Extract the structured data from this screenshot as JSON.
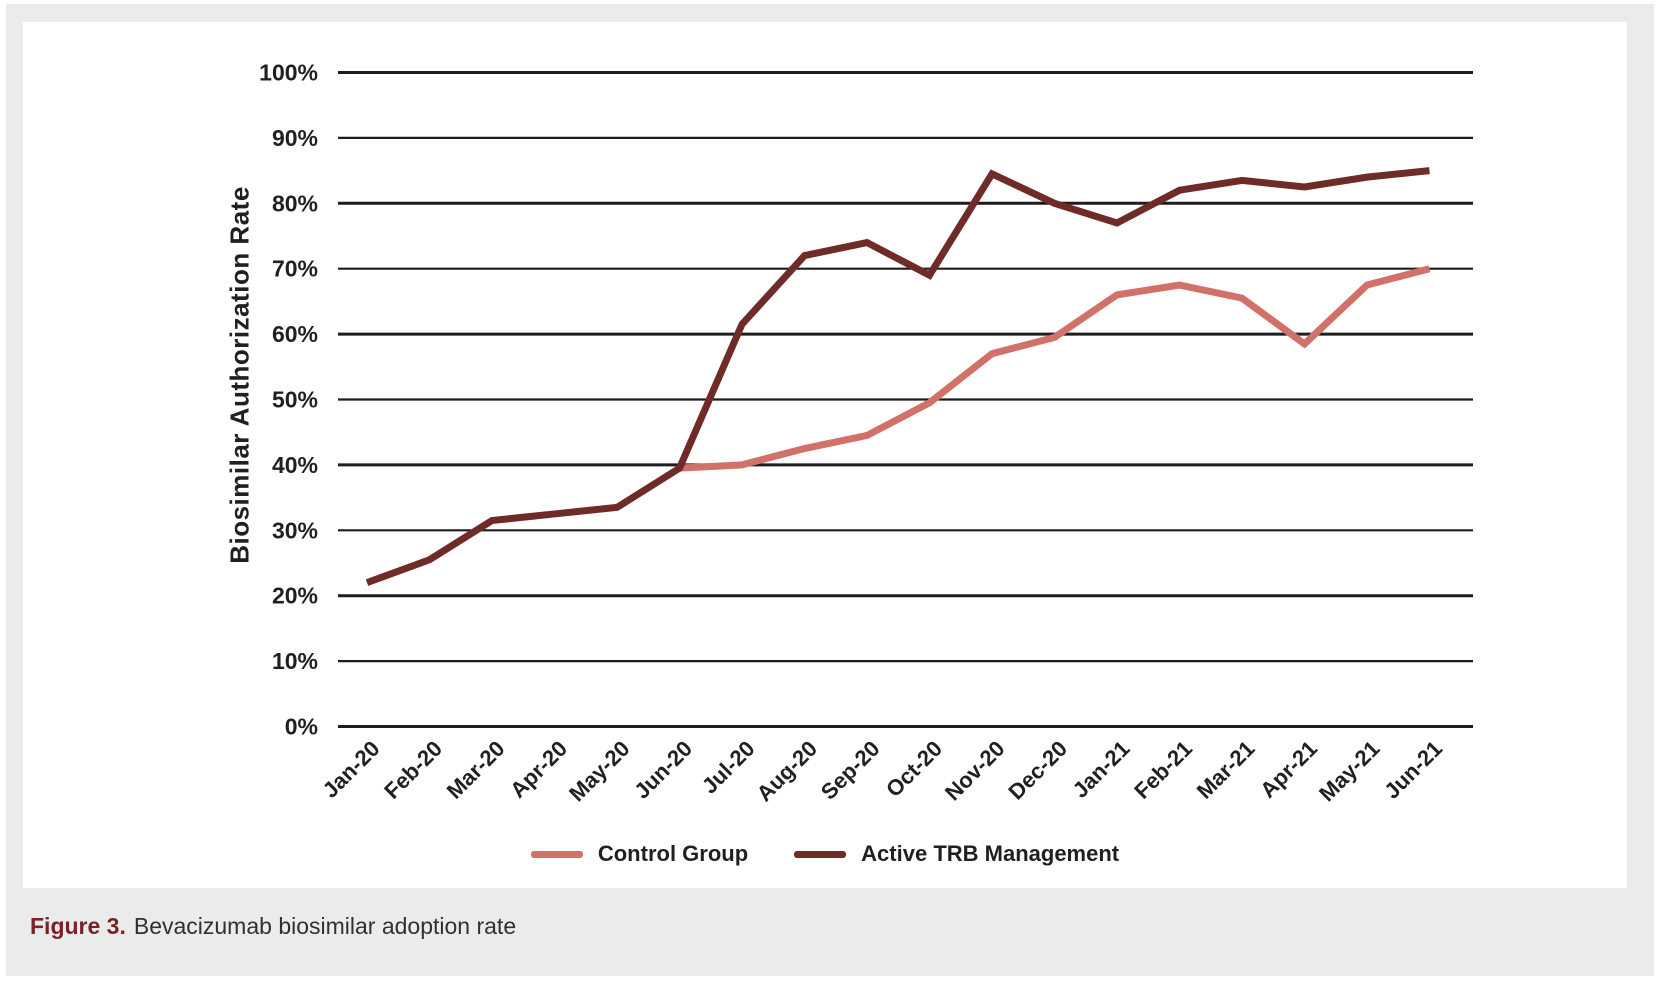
{
  "caption": {
    "label": "Figure 3.",
    "text": "Bevacizumab biosimilar adoption rate",
    "label_color": "#7a2226"
  },
  "colors": {
    "panel_background": "#eaeceb",
    "card_background": "#ffffff",
    "grid_line": "#1f1c1d",
    "text": "#231f20"
  },
  "chart_data": {
    "type": "line",
    "title": "",
    "xlabel": "",
    "ylabel": "Biosimilar Authorization Rate",
    "ylim": [
      0,
      100
    ],
    "ytick_step": 10,
    "ytick_suffix": "%",
    "grid": true,
    "legend_position": "bottom",
    "categories": [
      "Jan-20",
      "Feb-20",
      "Mar-20",
      "Apr-20",
      "May-20",
      "Jun-20",
      "Jul-20",
      "Aug-20",
      "Sep-20",
      "Oct-20",
      "Nov-20",
      "Dec-20",
      "Jan-21",
      "Feb-21",
      "Mar-21",
      "Apr-21",
      "May-21",
      "Jun-21"
    ],
    "series": [
      {
        "name": "Control Group",
        "color": "#d17168",
        "values": [
          null,
          null,
          null,
          null,
          null,
          39.5,
          40,
          42.5,
          44.5,
          49.5,
          57,
          59.5,
          66,
          67.5,
          65.5,
          58.5,
          67.5,
          70
        ]
      },
      {
        "name": "Active TRB Management",
        "color": "#6e2b27",
        "values": [
          22,
          25.5,
          31.5,
          32.5,
          33.5,
          39.5,
          61.5,
          72,
          74,
          69,
          84.5,
          80,
          77,
          82,
          83.5,
          82.5,
          84,
          85
        ]
      }
    ]
  }
}
